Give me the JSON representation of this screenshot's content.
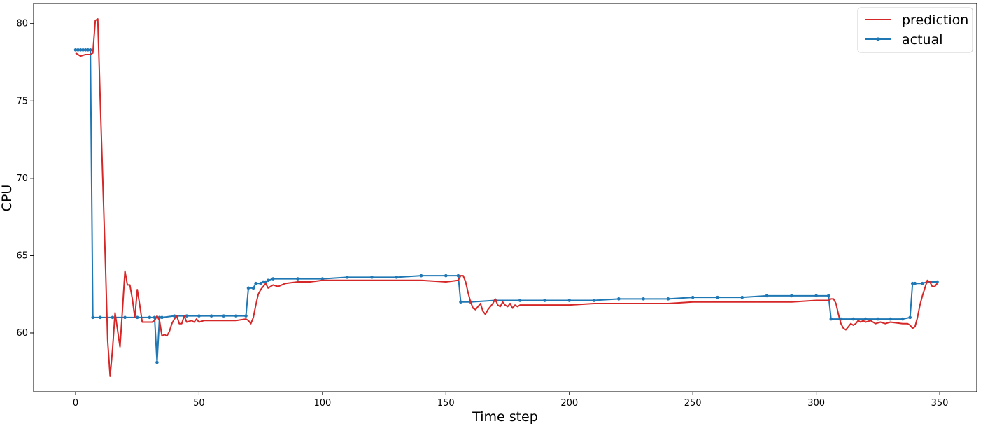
{
  "chart_data": {
    "type": "line",
    "title": "",
    "xlabel": "Time step",
    "ylabel": "CPU",
    "xlim": [
      -17,
      365
    ],
    "ylim": [
      56.2,
      81.3
    ],
    "xticks": [
      0,
      50,
      100,
      150,
      200,
      250,
      300,
      350
    ],
    "yticks": [
      60,
      65,
      70,
      75,
      80
    ],
    "grid": false,
    "legend_position": "top-right",
    "series": [
      {
        "name": "prediction",
        "color": "#d62728",
        "marker": "none",
        "points": [
          [
            0,
            78.1
          ],
          [
            2,
            77.9
          ],
          [
            4,
            78.0
          ],
          [
            6,
            78.0
          ],
          [
            7,
            78.1
          ],
          [
            8,
            80.2
          ],
          [
            9,
            80.3
          ],
          [
            10,
            75
          ],
          [
            11,
            70
          ],
          [
            12,
            65
          ],
          [
            13,
            59.5
          ],
          [
            14,
            57.2
          ],
          [
            15,
            59
          ],
          [
            16,
            61.3
          ],
          [
            17,
            60.2
          ],
          [
            18,
            59.1
          ],
          [
            19,
            61.5
          ],
          [
            20,
            64.0
          ],
          [
            21,
            63.1
          ],
          [
            22,
            63.1
          ],
          [
            23,
            62.2
          ],
          [
            24,
            61.0
          ],
          [
            25,
            62.8
          ],
          [
            26,
            61.8
          ],
          [
            27,
            60.7
          ],
          [
            28,
            60.7
          ],
          [
            30,
            60.7
          ],
          [
            31,
            60.7
          ],
          [
            32,
            60.8
          ],
          [
            33,
            61.1
          ],
          [
            34,
            60.8
          ],
          [
            35,
            59.8
          ],
          [
            36,
            59.9
          ],
          [
            37,
            59.8
          ],
          [
            38,
            60.1
          ],
          [
            39,
            60.6
          ],
          [
            40,
            60.9
          ],
          [
            41,
            61.1
          ],
          [
            42,
            60.6
          ],
          [
            43,
            60.6
          ],
          [
            44,
            61.1
          ],
          [
            45,
            60.7
          ],
          [
            47,
            60.8
          ],
          [
            48,
            60.7
          ],
          [
            49,
            60.9
          ],
          [
            50,
            60.7
          ],
          [
            52,
            60.8
          ],
          [
            55,
            60.8
          ],
          [
            60,
            60.8
          ],
          [
            65,
            60.8
          ],
          [
            69,
            60.9
          ],
          [
            70,
            60.8
          ],
          [
            71,
            60.6
          ],
          [
            72,
            61.0
          ],
          [
            73,
            61.8
          ],
          [
            74,
            62.5
          ],
          [
            75,
            62.8
          ],
          [
            76,
            63.0
          ],
          [
            77,
            63.2
          ],
          [
            78,
            62.9
          ],
          [
            79,
            63.0
          ],
          [
            80,
            63.1
          ],
          [
            82,
            63.0
          ],
          [
            85,
            63.2
          ],
          [
            90,
            63.3
          ],
          [
            95,
            63.3
          ],
          [
            100,
            63.4
          ],
          [
            110,
            63.4
          ],
          [
            120,
            63.4
          ],
          [
            130,
            63.4
          ],
          [
            140,
            63.4
          ],
          [
            150,
            63.3
          ],
          [
            155,
            63.4
          ],
          [
            156,
            63.7
          ],
          [
            157,
            63.7
          ],
          [
            158,
            63.3
          ],
          [
            159,
            62.6
          ],
          [
            160,
            62.0
          ],
          [
            161,
            61.6
          ],
          [
            162,
            61.5
          ],
          [
            163,
            61.7
          ],
          [
            164,
            61.9
          ],
          [
            165,
            61.4
          ],
          [
            166,
            61.2
          ],
          [
            167,
            61.5
          ],
          [
            168,
            61.7
          ],
          [
            169,
            61.9
          ],
          [
            170,
            62.2
          ],
          [
            171,
            61.8
          ],
          [
            172,
            61.7
          ],
          [
            173,
            62.0
          ],
          [
            174,
            61.8
          ],
          [
            175,
            61.7
          ],
          [
            176,
            61.9
          ],
          [
            177,
            61.6
          ],
          [
            178,
            61.8
          ],
          [
            179,
            61.7
          ],
          [
            180,
            61.8
          ],
          [
            190,
            61.8
          ],
          [
            200,
            61.8
          ],
          [
            210,
            61.9
          ],
          [
            220,
            61.9
          ],
          [
            230,
            61.9
          ],
          [
            240,
            61.9
          ],
          [
            250,
            62.0
          ],
          [
            260,
            62.0
          ],
          [
            270,
            62.0
          ],
          [
            280,
            62.0
          ],
          [
            290,
            62.0
          ],
          [
            300,
            62.1
          ],
          [
            305,
            62.1
          ],
          [
            306,
            62.2
          ],
          [
            307,
            62.2
          ],
          [
            308,
            61.9
          ],
          [
            309,
            61.2
          ],
          [
            310,
            60.6
          ],
          [
            311,
            60.3
          ],
          [
            312,
            60.2
          ],
          [
            313,
            60.4
          ],
          [
            314,
            60.6
          ],
          [
            315,
            60.5
          ],
          [
            316,
            60.6
          ],
          [
            317,
            60.8
          ],
          [
            318,
            60.7
          ],
          [
            319,
            60.8
          ],
          [
            320,
            60.7
          ],
          [
            322,
            60.8
          ],
          [
            324,
            60.6
          ],
          [
            326,
            60.7
          ],
          [
            328,
            60.6
          ],
          [
            330,
            60.7
          ],
          [
            335,
            60.6
          ],
          [
            337,
            60.6
          ],
          [
            338,
            60.5
          ],
          [
            339,
            60.3
          ],
          [
            340,
            60.4
          ],
          [
            341,
            61.0
          ],
          [
            342,
            61.8
          ],
          [
            343,
            62.4
          ],
          [
            344,
            62.9
          ],
          [
            345,
            63.4
          ],
          [
            346,
            63.3
          ],
          [
            347,
            63.0
          ],
          [
            348,
            63.0
          ],
          [
            349,
            63.2
          ]
        ]
      },
      {
        "name": "actual",
        "color": "#1f77b4",
        "marker": "dot",
        "points": [
          [
            0,
            78.3
          ],
          [
            1,
            78.3
          ],
          [
            2,
            78.3
          ],
          [
            3,
            78.3
          ],
          [
            4,
            78.3
          ],
          [
            5,
            78.3
          ],
          [
            6,
            78.3
          ],
          [
            7,
            61.0
          ],
          [
            10,
            61.0
          ],
          [
            15,
            61.0
          ],
          [
            20,
            61.0
          ],
          [
            25,
            61.0
          ],
          [
            30,
            61.0
          ],
          [
            32,
            61.0
          ],
          [
            33,
            58.1
          ],
          [
            34,
            61.0
          ],
          [
            35,
            61.0
          ],
          [
            40,
            61.1
          ],
          [
            45,
            61.1
          ],
          [
            50,
            61.1
          ],
          [
            55,
            61.1
          ],
          [
            60,
            61.1
          ],
          [
            65,
            61.1
          ],
          [
            69,
            61.1
          ],
          [
            70,
            62.9
          ],
          [
            72,
            62.9
          ],
          [
            73,
            63.2
          ],
          [
            75,
            63.2
          ],
          [
            76,
            63.3
          ],
          [
            77,
            63.3
          ],
          [
            78,
            63.4
          ],
          [
            80,
            63.5
          ],
          [
            90,
            63.5
          ],
          [
            100,
            63.5
          ],
          [
            110,
            63.6
          ],
          [
            120,
            63.6
          ],
          [
            130,
            63.6
          ],
          [
            140,
            63.7
          ],
          [
            150,
            63.7
          ],
          [
            155,
            63.7
          ],
          [
            156,
            62.0
          ],
          [
            160,
            62.0
          ],
          [
            170,
            62.1
          ],
          [
            180,
            62.1
          ],
          [
            190,
            62.1
          ],
          [
            200,
            62.1
          ],
          [
            210,
            62.1
          ],
          [
            220,
            62.2
          ],
          [
            230,
            62.2
          ],
          [
            240,
            62.2
          ],
          [
            250,
            62.3
          ],
          [
            260,
            62.3
          ],
          [
            270,
            62.3
          ],
          [
            280,
            62.4
          ],
          [
            290,
            62.4
          ],
          [
            300,
            62.4
          ],
          [
            305,
            62.4
          ],
          [
            306,
            60.9
          ],
          [
            310,
            60.9
          ],
          [
            315,
            60.9
          ],
          [
            320,
            60.9
          ],
          [
            325,
            60.9
          ],
          [
            330,
            60.9
          ],
          [
            335,
            60.9
          ],
          [
            338,
            61.0
          ],
          [
            339,
            63.2
          ],
          [
            340,
            63.2
          ],
          [
            343,
            63.2
          ],
          [
            345,
            63.3
          ],
          [
            349,
            63.3
          ]
        ]
      }
    ]
  }
}
